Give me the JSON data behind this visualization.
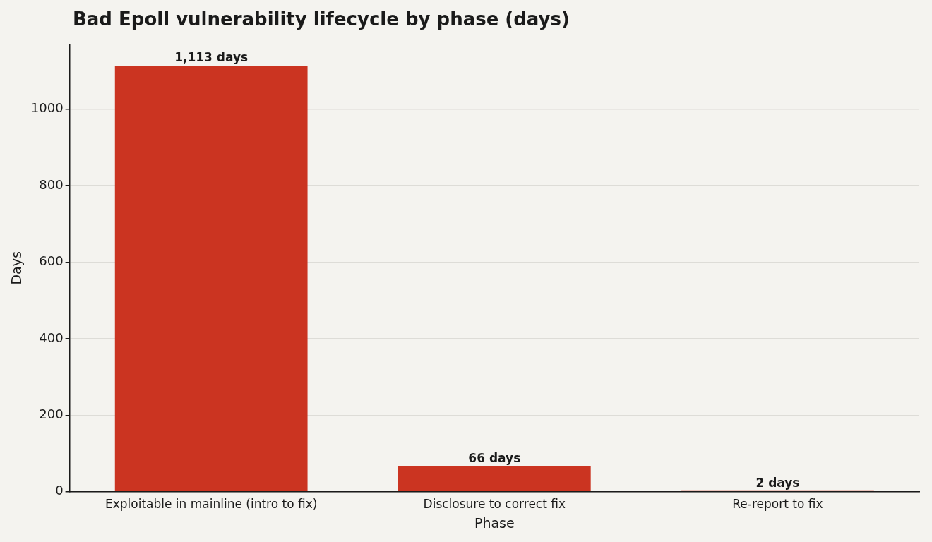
{
  "chart_data": {
    "type": "bar",
    "title": "Bad Epoll vulnerability lifecycle by phase (days)",
    "xlabel": "Phase",
    "ylabel": "Days",
    "categories": [
      "Exploitable in mainline (intro to fix)",
      "Disclosure to correct fix",
      "Re-report to fix"
    ],
    "values": [
      1113,
      66,
      2
    ],
    "color": "#cb3421",
    "value_labels": [
      "1,113 days",
      "66 days",
      "2 days"
    ],
    "ylim": [
      0,
      1169
    ],
    "yticks": [
      0,
      200,
      400,
      600,
      800,
      1000
    ],
    "grid": "y",
    "legend": false
  }
}
